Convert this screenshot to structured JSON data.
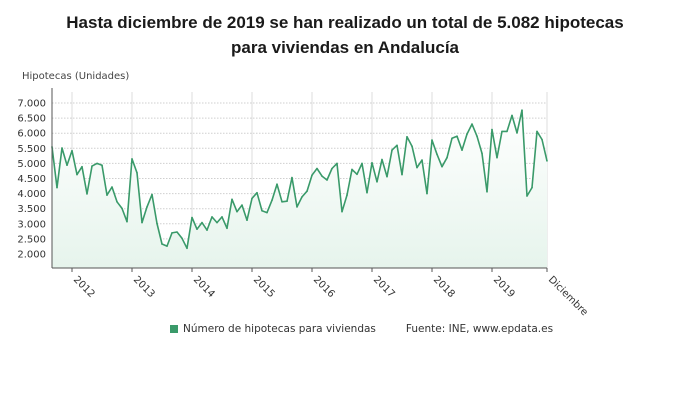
{
  "title_lines": [
    "Hasta diciembre de 2019 se han realizado un total de 5.082 hipotecas",
    "para viviendas en Andalucía"
  ],
  "legend": {
    "series_label": "Número de hipotecas para viviendas",
    "source": "Fuente: INE, www.epdata.es"
  },
  "colors": {
    "line": "#3a9a6a",
    "fill": "#e6f4ec",
    "grid": "#cccccc"
  },
  "chart_data": {
    "type": "area",
    "title": "Hasta diciembre de 2019 se han realizado un total de 5.082 hipotecas para viviendas en Andalucía",
    "ylabel": "Hipotecas (Unidades)",
    "xlabel": "",
    "ylim": [
      1500,
      7300
    ],
    "yticks": [
      2000,
      2500,
      3000,
      3500,
      4000,
      4500,
      5000,
      5500,
      6000,
      6500,
      7000
    ],
    "ytick_labels": [
      "2.000",
      "2.500",
      "3.000",
      "3.500",
      "4.000",
      "4.500",
      "5.000",
      "5.500",
      "6.000",
      "6.500",
      "7.000"
    ],
    "xticks": [
      "2012-01",
      "2013-01",
      "2014-01",
      "2015-01",
      "2016-01",
      "2017-01",
      "2018-01",
      "2019-01",
      "2019-12"
    ],
    "xtick_labels": [
      "2012",
      "2013",
      "2014",
      "2015",
      "2016",
      "2017",
      "2018",
      "2019",
      "Diciembre"
    ],
    "grid": true,
    "legend_position": "bottom",
    "x": [
      "2011-09",
      "2011-10",
      "2011-11",
      "2011-12",
      "2012-01",
      "2012-02",
      "2012-03",
      "2012-04",
      "2012-05",
      "2012-06",
      "2012-07",
      "2012-08",
      "2012-09",
      "2012-10",
      "2012-11",
      "2012-12",
      "2013-01",
      "2013-02",
      "2013-03",
      "2013-04",
      "2013-05",
      "2013-06",
      "2013-07",
      "2013-08",
      "2013-09",
      "2013-10",
      "2013-11",
      "2013-12",
      "2014-01",
      "2014-02",
      "2014-03",
      "2014-04",
      "2014-05",
      "2014-06",
      "2014-07",
      "2014-08",
      "2014-09",
      "2014-10",
      "2014-11",
      "2014-12",
      "2015-01",
      "2015-02",
      "2015-03",
      "2015-04",
      "2015-05",
      "2015-06",
      "2015-07",
      "2015-08",
      "2015-09",
      "2015-10",
      "2015-11",
      "2015-12",
      "2016-01",
      "2016-02",
      "2016-03",
      "2016-04",
      "2016-05",
      "2016-06",
      "2016-07",
      "2016-08",
      "2016-09",
      "2016-10",
      "2016-11",
      "2016-12",
      "2017-01",
      "2017-02",
      "2017-03",
      "2017-04",
      "2017-05",
      "2017-06",
      "2017-07",
      "2017-08",
      "2017-09",
      "2017-10",
      "2017-11",
      "2017-12",
      "2018-01",
      "2018-02",
      "2018-03",
      "2018-04",
      "2018-05",
      "2018-06",
      "2018-07",
      "2018-08",
      "2018-09",
      "2018-10",
      "2018-11",
      "2018-12",
      "2019-01",
      "2019-02",
      "2019-03",
      "2019-04",
      "2019-05",
      "2019-06",
      "2019-07",
      "2019-08",
      "2019-09",
      "2019-10",
      "2019-11",
      "2019-12"
    ],
    "series": [
      {
        "name": "Número de hipotecas para viviendas",
        "values": [
          5550,
          4200,
          5510,
          4940,
          5420,
          4630,
          4890,
          3990,
          4910,
          5000,
          4940,
          3950,
          4220,
          3730,
          3510,
          3070,
          5150,
          4690,
          3040,
          3560,
          3970,
          3010,
          2330,
          2260,
          2700,
          2730,
          2520,
          2190,
          3210,
          2820,
          3040,
          2790,
          3230,
          3040,
          3230,
          2850,
          3810,
          3400,
          3620,
          3120,
          3840,
          4030,
          3430,
          3370,
          3780,
          4310,
          3730,
          3750,
          4530,
          3560,
          3890,
          4080,
          4610,
          4830,
          4580,
          4450,
          4830,
          5000,
          3400,
          3950,
          4800,
          4640,
          5000,
          4030,
          5020,
          4390,
          5130,
          4560,
          5440,
          5600,
          4630,
          5880,
          5570,
          4860,
          5110,
          4000,
          5770,
          5300,
          4890,
          5190,
          5830,
          5900,
          5440,
          5970,
          6300,
          5900,
          5330,
          4060,
          6120,
          5190,
          6060,
          6060,
          6590,
          6010,
          6760,
          3920,
          4200,
          6060,
          5790,
          5082
        ]
      }
    ]
  }
}
